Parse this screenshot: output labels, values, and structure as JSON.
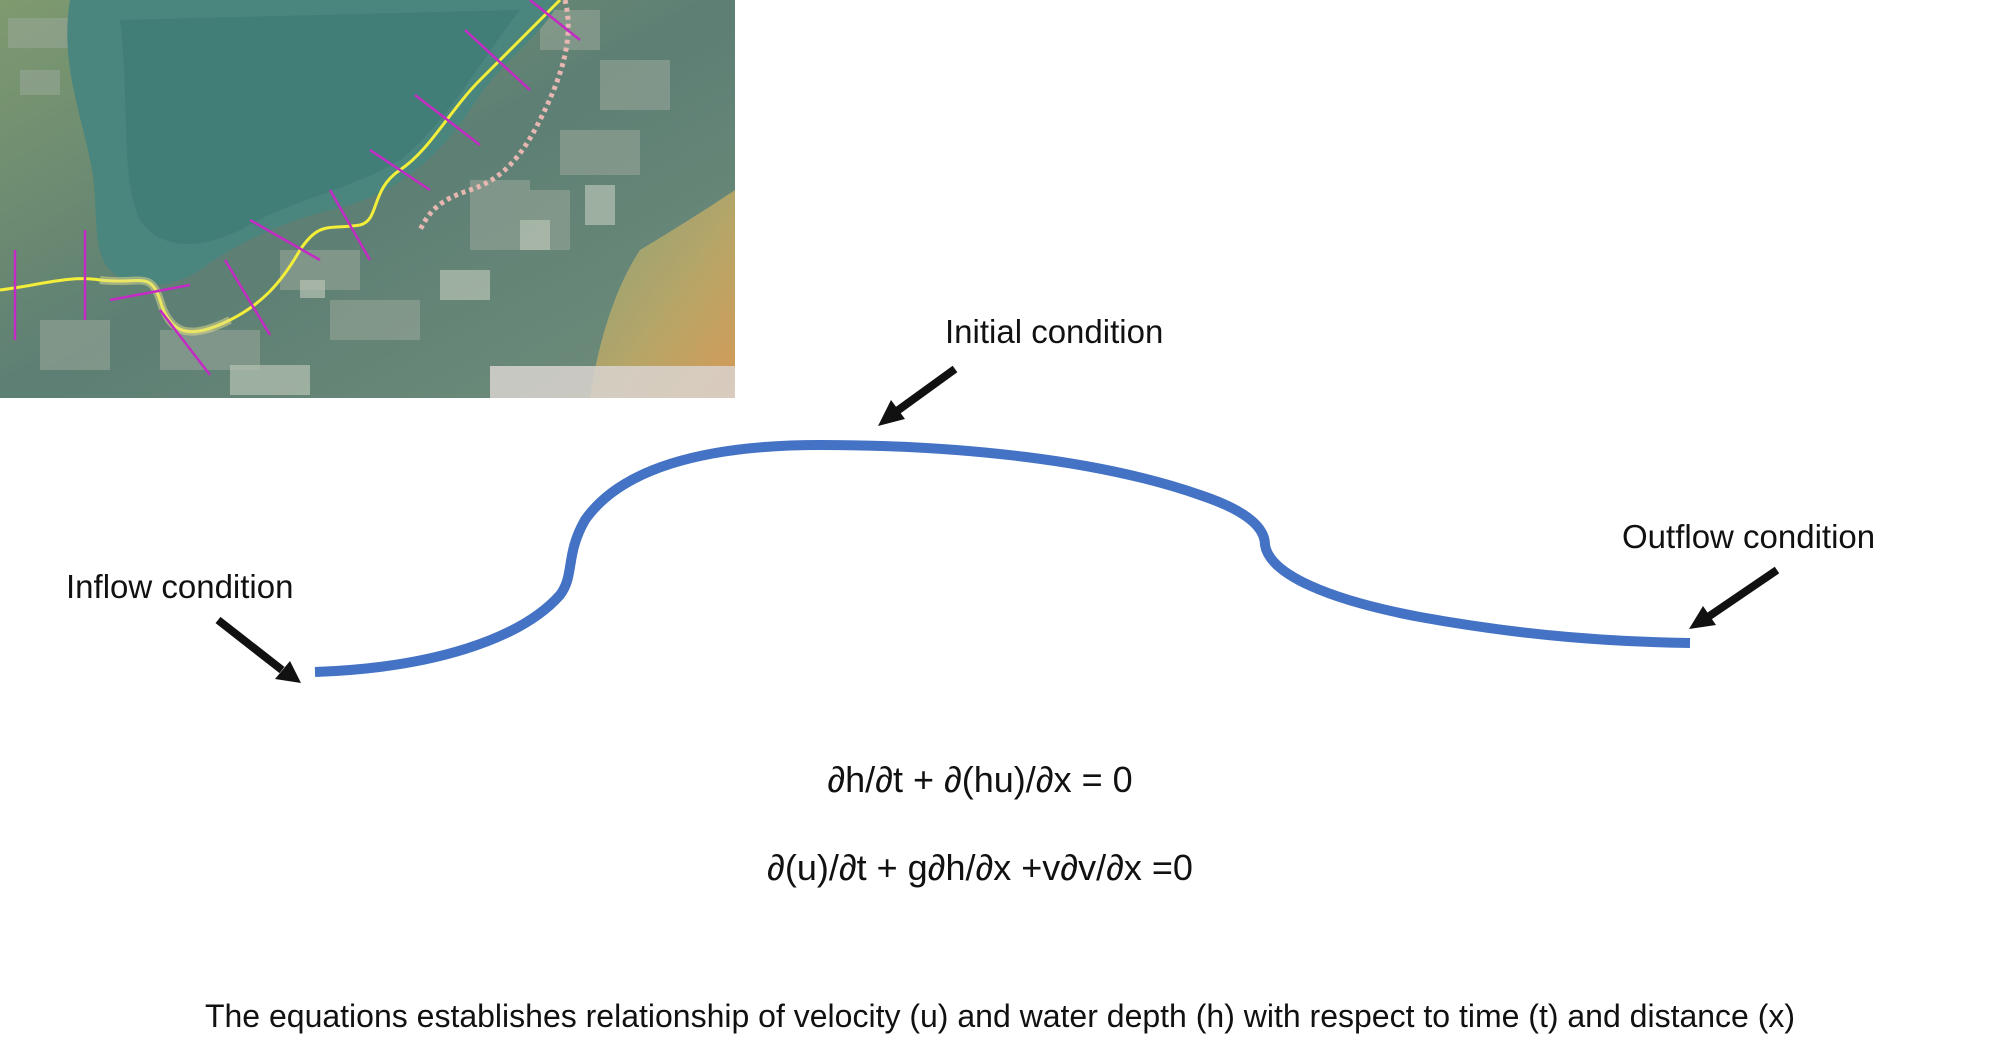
{
  "labels": {
    "initial": "Initial condition",
    "inflow": "Inflow condition",
    "outflow": "Outflow condition"
  },
  "equations": {
    "continuity": "∂h/∂t + ∂(hu)/∂x = 0",
    "momentum": "∂(u)/∂t + g∂h/∂x +v∂v/∂x =0"
  },
  "caption": "The equations establishes relationship of velocity (u) and water depth (h) with respect to time (t) and distance (x)",
  "colors": {
    "river_curve": "#4472C4",
    "arrow": "#111111",
    "map_water": "#3f7f7a",
    "map_land": "#6f8f73",
    "map_sand": "#c9a060",
    "route_line": "#f2ee3a",
    "cross_sections": "#c42bc4"
  },
  "icons": {
    "map": "aerial-map-image",
    "arrows": "arrow-pointer-icon"
  }
}
